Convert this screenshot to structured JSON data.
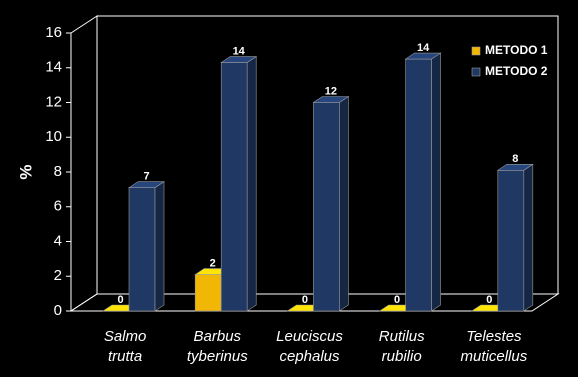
{
  "chart_data": {
    "type": "bar3d",
    "y_label": "%",
    "categories": [
      [
        "Salmo",
        "trutta"
      ],
      [
        "Barbus",
        "tyberinus"
      ],
      [
        "Leuciscus",
        "cephalus"
      ],
      [
        "Rutilus",
        "rubilio"
      ],
      [
        "Telestes",
        "muticellus"
      ]
    ],
    "series": [
      {
        "name": "METODO 1",
        "color": "#f2b705",
        "values": [
          0,
          2.1,
          0,
          0,
          0
        ],
        "value_labels": [
          "0",
          "2",
          "0",
          "0",
          "0"
        ]
      },
      {
        "name": "METODO 2",
        "color": "#1f3864",
        "values": [
          7.1,
          14.3,
          12,
          14.5,
          8.1
        ],
        "value_labels": [
          "7",
          "14",
          "12",
          "14",
          "8"
        ]
      }
    ],
    "ylim": [
      0,
      16
    ],
    "yticks": [
      0,
      2,
      4,
      6,
      8,
      10,
      12,
      14,
      16
    ],
    "legend": "top-right"
  }
}
